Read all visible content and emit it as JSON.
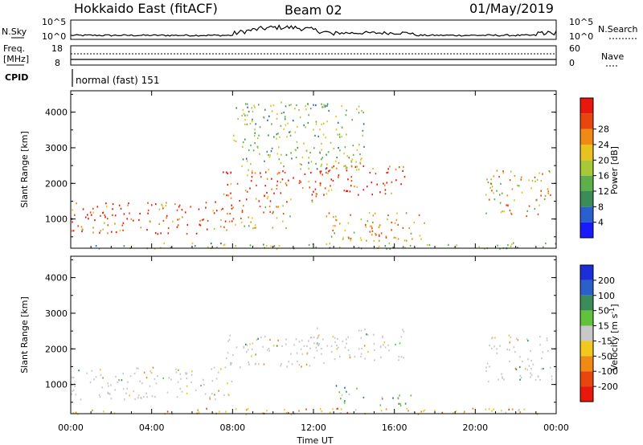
{
  "header": {
    "station": "Hokkaido East (fitACF)",
    "beam": "Beam 02",
    "date": "01/May/2019"
  },
  "noise_panel": {
    "left_label": "N.Sky",
    "right_label": "N.Search",
    "left_ticks": [
      "10^5",
      "10^0"
    ],
    "right_ticks": [
      "10^5",
      "10^0"
    ]
  },
  "freq_panel": {
    "left_label_line1": "Freq.",
    "left_label_line2": "[MHz]",
    "left_ticks": [
      "18",
      "8"
    ],
    "right_label": "Nave",
    "right_ticks": [
      "60",
      "0"
    ]
  },
  "cpid_panel": {
    "label": "CPID",
    "mode": "normal (fast) 151"
  },
  "chart_data": [
    {
      "type": "heatmap",
      "quantity": "Power",
      "ylabel": "Slant Range [km]",
      "ylim": [
        180,
        4600
      ],
      "yticks": [
        1000,
        2000,
        3000,
        4000
      ],
      "xlim": [
        "00:00",
        "24:00"
      ],
      "colorbar": {
        "label": "Power [dB]",
        "ticks": [
          4,
          8,
          12,
          16,
          20,
          24,
          28
        ],
        "colors": [
          "#1a1aff",
          "#2a5fd0",
          "#3c8c5a",
          "#5fae4c",
          "#a8c838",
          "#e8c21e",
          "#f08a14",
          "#e8460e",
          "#e8180c"
        ]
      },
      "regions": [
        {
          "t0": 0.0,
          "t1": 8.0,
          "r0": 600,
          "r1": 1500,
          "dominant_db": 24
        },
        {
          "t0": 7.5,
          "t1": 12.5,
          "r0": 1500,
          "r1": 2400,
          "dominant_db": 26
        },
        {
          "t0": 12.0,
          "t1": 16.5,
          "r0": 1700,
          "r1": 2600,
          "dominant_db": 25
        },
        {
          "t0": 8.0,
          "t1": 11.0,
          "r0": 750,
          "r1": 1400,
          "dominant_db": 22
        },
        {
          "t0": 12.5,
          "t1": 17.5,
          "r0": 400,
          "r1": 1200,
          "dominant_db": 18
        },
        {
          "t0": 20.5,
          "t1": 23.8,
          "r0": 1100,
          "r1": 2400,
          "dominant_db": 18
        },
        {
          "t0": 8.0,
          "t1": 14.5,
          "r0": 2400,
          "r1": 4300,
          "dominant_db": 12
        },
        {
          "t0": 0.0,
          "t1": 24.0,
          "r0": 180,
          "r1": 350,
          "dominant_db": 10
        }
      ]
    },
    {
      "type": "heatmap",
      "quantity": "Velocity",
      "ylabel": "Slant Range [km]",
      "ylim": [
        180,
        4600
      ],
      "yticks": [
        1000,
        2000,
        3000,
        4000
      ],
      "xlabel": "Time UT",
      "xlim": [
        "00:00",
        "24:00"
      ],
      "xticks": [
        "00:00",
        "04:00",
        "08:00",
        "12:00",
        "16:00",
        "20:00",
        "00:00"
      ],
      "colorbar": {
        "label": "Velocity [m s-1]",
        "ticks": [
          "200",
          "100",
          "50",
          "15",
          "-15",
          "-50",
          "-100",
          "-200"
        ],
        "colors": [
          "#1a2fd8",
          "#2a60c8",
          "#3c8c5a",
          "#62c23c",
          "#c8c8c8",
          "#f0c81e",
          "#f08a14",
          "#e8460e",
          "#e8180c"
        ]
      },
      "regions": [
        {
          "t0": 0.0,
          "t1": 8.0,
          "r0": 600,
          "r1": 1500,
          "dominant_ms": 0
        },
        {
          "t0": 7.5,
          "t1": 12.5,
          "r0": 1500,
          "r1": 2400,
          "dominant_ms": 0
        },
        {
          "t0": 12.0,
          "t1": 16.5,
          "r0": 1700,
          "r1": 2600,
          "dominant_ms": 0
        },
        {
          "t0": 13.0,
          "t1": 14.5,
          "r0": 500,
          "r1": 1000,
          "dominant_ms": 50
        },
        {
          "t0": 15.0,
          "t1": 17.0,
          "r0": 400,
          "r1": 750,
          "dominant_ms": 50
        },
        {
          "t0": 20.5,
          "t1": 23.8,
          "r0": 1100,
          "r1": 2400,
          "dominant_ms": 0
        },
        {
          "t0": 0.0,
          "t1": 24.0,
          "r0": 180,
          "r1": 350,
          "dominant_ms": -50
        }
      ]
    }
  ]
}
